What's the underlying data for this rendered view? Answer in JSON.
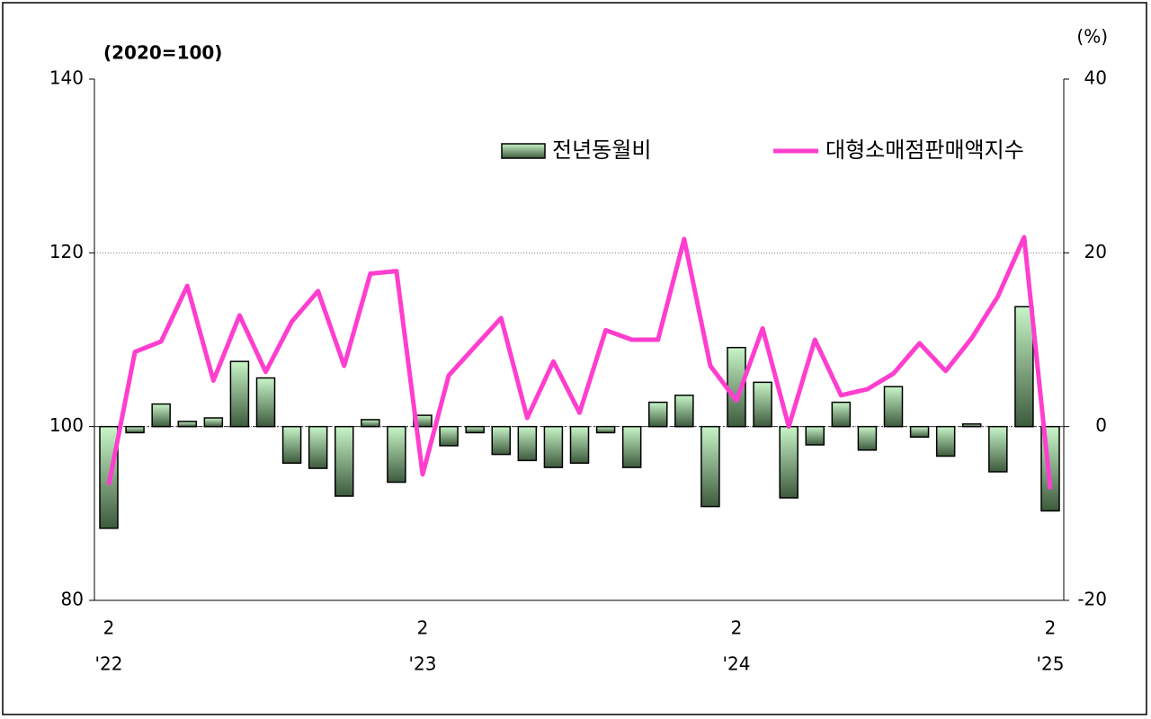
{
  "chart_data": {
    "type": "bar-line",
    "left_axis_label": "(2020=100)",
    "right_axis_label": "(%)",
    "categories": [
      "2",
      null,
      null,
      null,
      null,
      null,
      null,
      null,
      null,
      null,
      null,
      null,
      "2",
      null,
      null,
      null,
      null,
      null,
      null,
      null,
      null,
      null,
      null,
      null,
      "2",
      null,
      null,
      null,
      null,
      null,
      null,
      null,
      null,
      null,
      null,
      null,
      "2"
    ],
    "year_labels": [
      "'22",
      null,
      null,
      null,
      null,
      null,
      null,
      null,
      null,
      null,
      null,
      null,
      "'23",
      null,
      null,
      null,
      null,
      null,
      null,
      null,
      null,
      null,
      null,
      null,
      "'24",
      null,
      null,
      null,
      null,
      null,
      null,
      null,
      null,
      null,
      null,
      null,
      "'25"
    ],
    "series": [
      {
        "name": "전년동월비",
        "type": "bar",
        "axis": "y2",
        "color": "#c8f5c8",
        "values": [
          -11.7,
          -0.7,
          2.6,
          0.6,
          1.0,
          7.5,
          5.6,
          -4.2,
          -4.8,
          -8.0,
          0.8,
          -6.4,
          1.3,
          -2.2,
          -0.7,
          -3.2,
          -3.9,
          -4.7,
          -4.2,
          -0.7,
          -4.7,
          2.8,
          3.6,
          -9.2,
          9.1,
          5.1,
          -8.2,
          -2.1,
          2.8,
          -2.7,
          4.6,
          -1.2,
          -3.4,
          0.3,
          -5.2,
          13.8,
          -9.7
        ]
      },
      {
        "name": "대형소매점판매액지수",
        "type": "line",
        "axis": "y",
        "color": "#ff3ecf",
        "values": [
          93.3,
          108.6,
          109.8,
          116.2,
          105.3,
          112.8,
          106.3,
          112.1,
          115.6,
          107.0,
          117.6,
          117.9,
          94.5,
          105.9,
          109.2,
          112.5,
          101.0,
          107.5,
          101.6,
          111.1,
          110.0,
          110.0,
          121.6,
          107.0,
          103.0,
          111.3,
          100.0,
          110.0,
          103.6,
          104.3,
          106.1,
          109.6,
          106.4,
          110.2,
          115.0,
          121.8,
          92.8
        ]
      }
    ],
    "ylim": [
      80,
      140
    ],
    "yticks": [
      80,
      100,
      120,
      140
    ],
    "y2lim": [
      -20,
      40
    ],
    "y2ticks": [
      -20,
      0,
      20,
      40
    ],
    "grid": true,
    "legend": "top"
  }
}
